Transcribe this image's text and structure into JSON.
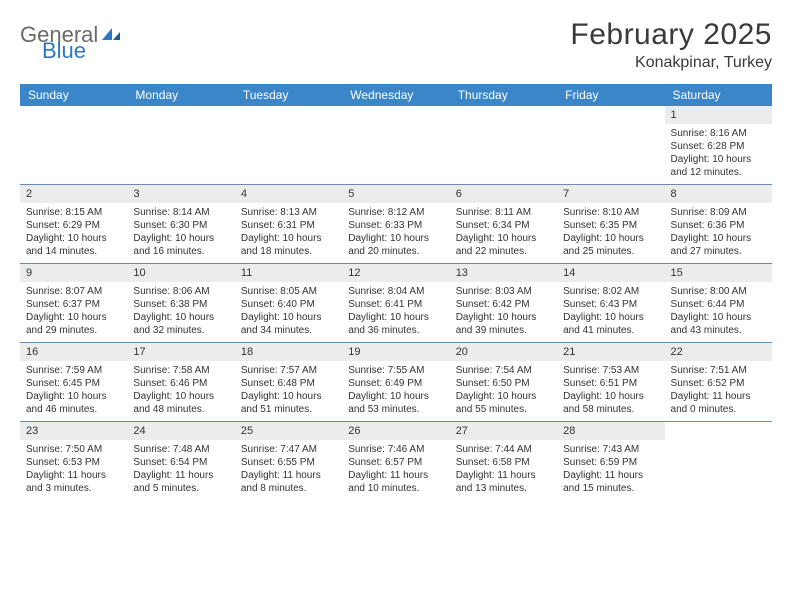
{
  "brand": {
    "general": "General",
    "blue": "Blue"
  },
  "title": "February 2025",
  "location": "Konakpinar, Turkey",
  "colors": {
    "header_bg": "#3a86c8",
    "header_text": "#ffffff",
    "daynum_bg": "#ececec",
    "rule": "#6a8bb0",
    "text": "#333333",
    "logo_gray": "#6a6a6a",
    "logo_blue": "#2f78c1",
    "page_bg": "#ffffff"
  },
  "dayNames": [
    "Sunday",
    "Monday",
    "Tuesday",
    "Wednesday",
    "Thursday",
    "Friday",
    "Saturday"
  ],
  "weeks": [
    [
      null,
      null,
      null,
      null,
      null,
      null,
      {
        "n": "1",
        "sr": "Sunrise: 8:16 AM",
        "ss": "Sunset: 6:28 PM",
        "dl": "Daylight: 10 hours and 12 minutes."
      }
    ],
    [
      {
        "n": "2",
        "sr": "Sunrise: 8:15 AM",
        "ss": "Sunset: 6:29 PM",
        "dl": "Daylight: 10 hours and 14 minutes."
      },
      {
        "n": "3",
        "sr": "Sunrise: 8:14 AM",
        "ss": "Sunset: 6:30 PM",
        "dl": "Daylight: 10 hours and 16 minutes."
      },
      {
        "n": "4",
        "sr": "Sunrise: 8:13 AM",
        "ss": "Sunset: 6:31 PM",
        "dl": "Daylight: 10 hours and 18 minutes."
      },
      {
        "n": "5",
        "sr": "Sunrise: 8:12 AM",
        "ss": "Sunset: 6:33 PM",
        "dl": "Daylight: 10 hours and 20 minutes."
      },
      {
        "n": "6",
        "sr": "Sunrise: 8:11 AM",
        "ss": "Sunset: 6:34 PM",
        "dl": "Daylight: 10 hours and 22 minutes."
      },
      {
        "n": "7",
        "sr": "Sunrise: 8:10 AM",
        "ss": "Sunset: 6:35 PM",
        "dl": "Daylight: 10 hours and 25 minutes."
      },
      {
        "n": "8",
        "sr": "Sunrise: 8:09 AM",
        "ss": "Sunset: 6:36 PM",
        "dl": "Daylight: 10 hours and 27 minutes."
      }
    ],
    [
      {
        "n": "9",
        "sr": "Sunrise: 8:07 AM",
        "ss": "Sunset: 6:37 PM",
        "dl": "Daylight: 10 hours and 29 minutes."
      },
      {
        "n": "10",
        "sr": "Sunrise: 8:06 AM",
        "ss": "Sunset: 6:38 PM",
        "dl": "Daylight: 10 hours and 32 minutes."
      },
      {
        "n": "11",
        "sr": "Sunrise: 8:05 AM",
        "ss": "Sunset: 6:40 PM",
        "dl": "Daylight: 10 hours and 34 minutes."
      },
      {
        "n": "12",
        "sr": "Sunrise: 8:04 AM",
        "ss": "Sunset: 6:41 PM",
        "dl": "Daylight: 10 hours and 36 minutes."
      },
      {
        "n": "13",
        "sr": "Sunrise: 8:03 AM",
        "ss": "Sunset: 6:42 PM",
        "dl": "Daylight: 10 hours and 39 minutes."
      },
      {
        "n": "14",
        "sr": "Sunrise: 8:02 AM",
        "ss": "Sunset: 6:43 PM",
        "dl": "Daylight: 10 hours and 41 minutes."
      },
      {
        "n": "15",
        "sr": "Sunrise: 8:00 AM",
        "ss": "Sunset: 6:44 PM",
        "dl": "Daylight: 10 hours and 43 minutes."
      }
    ],
    [
      {
        "n": "16",
        "sr": "Sunrise: 7:59 AM",
        "ss": "Sunset: 6:45 PM",
        "dl": "Daylight: 10 hours and 46 minutes."
      },
      {
        "n": "17",
        "sr": "Sunrise: 7:58 AM",
        "ss": "Sunset: 6:46 PM",
        "dl": "Daylight: 10 hours and 48 minutes."
      },
      {
        "n": "18",
        "sr": "Sunrise: 7:57 AM",
        "ss": "Sunset: 6:48 PM",
        "dl": "Daylight: 10 hours and 51 minutes."
      },
      {
        "n": "19",
        "sr": "Sunrise: 7:55 AM",
        "ss": "Sunset: 6:49 PM",
        "dl": "Daylight: 10 hours and 53 minutes."
      },
      {
        "n": "20",
        "sr": "Sunrise: 7:54 AM",
        "ss": "Sunset: 6:50 PM",
        "dl": "Daylight: 10 hours and 55 minutes."
      },
      {
        "n": "21",
        "sr": "Sunrise: 7:53 AM",
        "ss": "Sunset: 6:51 PM",
        "dl": "Daylight: 10 hours and 58 minutes."
      },
      {
        "n": "22",
        "sr": "Sunrise: 7:51 AM",
        "ss": "Sunset: 6:52 PM",
        "dl": "Daylight: 11 hours and 0 minutes."
      }
    ],
    [
      {
        "n": "23",
        "sr": "Sunrise: 7:50 AM",
        "ss": "Sunset: 6:53 PM",
        "dl": "Daylight: 11 hours and 3 minutes."
      },
      {
        "n": "24",
        "sr": "Sunrise: 7:48 AM",
        "ss": "Sunset: 6:54 PM",
        "dl": "Daylight: 11 hours and 5 minutes."
      },
      {
        "n": "25",
        "sr": "Sunrise: 7:47 AM",
        "ss": "Sunset: 6:55 PM",
        "dl": "Daylight: 11 hours and 8 minutes."
      },
      {
        "n": "26",
        "sr": "Sunrise: 7:46 AM",
        "ss": "Sunset: 6:57 PM",
        "dl": "Daylight: 11 hours and 10 minutes."
      },
      {
        "n": "27",
        "sr": "Sunrise: 7:44 AM",
        "ss": "Sunset: 6:58 PM",
        "dl": "Daylight: 11 hours and 13 minutes."
      },
      {
        "n": "28",
        "sr": "Sunrise: 7:43 AM",
        "ss": "Sunset: 6:59 PM",
        "dl": "Daylight: 11 hours and 15 minutes."
      },
      null
    ]
  ]
}
